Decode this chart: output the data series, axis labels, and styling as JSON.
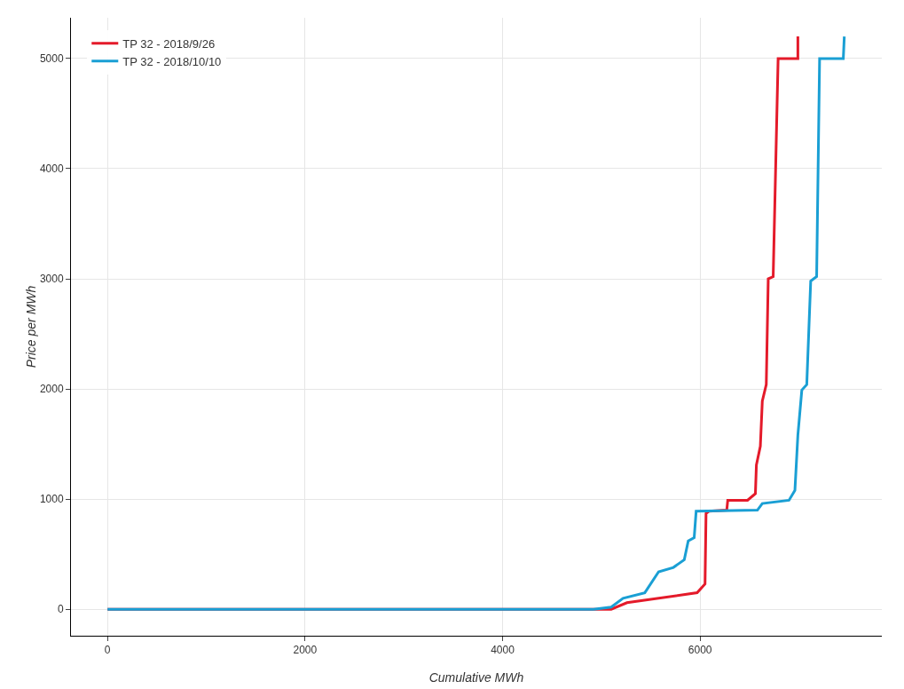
{
  "chart_data": {
    "type": "line",
    "xlabel": "Cumulative MWh",
    "ylabel": "Price per MWh",
    "xlim": [
      -370,
      7840
    ],
    "xticks": [
      0,
      2000,
      4000,
      6000
    ],
    "ylim": [
      -240,
      5370
    ],
    "yticks": [
      0,
      1000,
      2000,
      3000,
      4000,
      5000
    ],
    "grid": true,
    "legend": "top left",
    "line_style": "solid",
    "marker": "none",
    "series": [
      {
        "name": "TP 32 - 2018/9/26",
        "color": "#e41a2a",
        "x": [
          0,
          5100,
          5260,
          5970,
          6050,
          6060,
          6090,
          6270,
          6280,
          6480,
          6560,
          6570,
          6610,
          6630,
          6670,
          6690,
          6740,
          6790,
          6990,
          6990
        ],
        "values": [
          0,
          0,
          60,
          150,
          230,
          870,
          890,
          900,
          990,
          990,
          1050,
          1310,
          1480,
          1890,
          2040,
          3000,
          3020,
          5000,
          5000,
          5200
        ]
      },
      {
        "name": "TP 32 - 2018/10/10",
        "color": "#1a9fd4",
        "x": [
          0,
          4920,
          5100,
          5220,
          5440,
          5580,
          5730,
          5840,
          5880,
          5940,
          5960,
          6580,
          6630,
          6900,
          6960,
          6990,
          7030,
          7080,
          7120,
          7180,
          7210,
          7450,
          7460
        ],
        "values": [
          0,
          0,
          20,
          100,
          150,
          340,
          380,
          450,
          620,
          650,
          890,
          900,
          960,
          990,
          1080,
          1580,
          1990,
          2040,
          2980,
          3020,
          5000,
          5000,
          5200
        ]
      }
    ]
  }
}
